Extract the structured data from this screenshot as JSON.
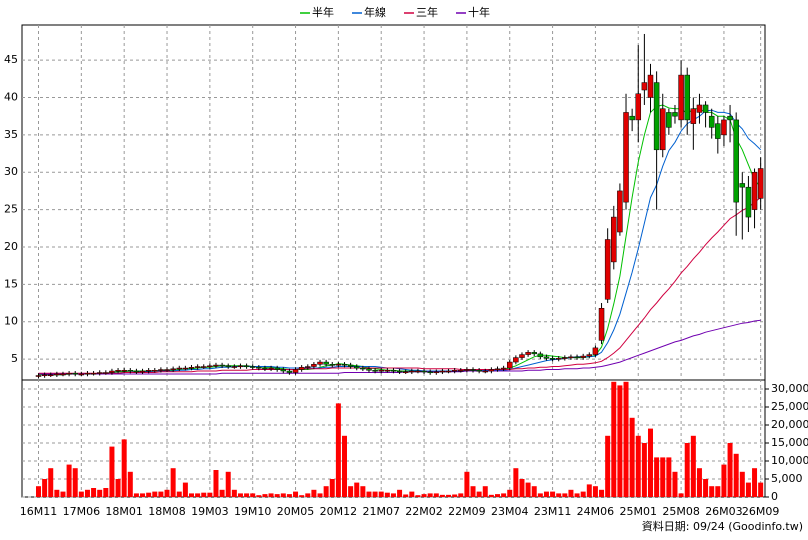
{
  "chart_data": {
    "type": "candlestick",
    "source": "資料日期: 09/24  (Goodinfo.tw)",
    "categories": [
      "16M11",
      null,
      null,
      null,
      null,
      null,
      null,
      "17M06",
      null,
      null,
      null,
      null,
      null,
      null,
      "18M01",
      null,
      null,
      null,
      null,
      null,
      null,
      "18M08",
      null,
      null,
      null,
      null,
      null,
      null,
      "19M03",
      null,
      null,
      null,
      null,
      null,
      null,
      "19M10",
      null,
      null,
      null,
      null,
      null,
      null,
      "20M05",
      null,
      null,
      null,
      null,
      null,
      null,
      "20M12",
      null,
      null,
      null,
      null,
      null,
      null,
      "21M07",
      null,
      null,
      null,
      null,
      null,
      null,
      "22M02",
      null,
      null,
      null,
      null,
      null,
      null,
      "22M09",
      null,
      null,
      null,
      null,
      null,
      null,
      "23M04",
      null,
      null,
      null,
      null,
      null,
      null,
      "23M11",
      null,
      null,
      null,
      null,
      null,
      null,
      "24M06",
      null,
      null,
      null,
      null,
      null,
      null,
      "25M01",
      null,
      null,
      null,
      null,
      null,
      null,
      "25M08",
      null,
      null,
      null,
      null,
      null,
      null,
      "26M03",
      null,
      null,
      null,
      null,
      null,
      "26M09"
    ],
    "open": [
      2.7,
      2.8,
      2.9,
      2.9,
      3.0,
      3.0,
      3.1,
      3.0,
      3.0,
      3.1,
      3.1,
      3.2,
      3.2,
      3.4,
      3.5,
      3.5,
      3.4,
      3.3,
      3.4,
      3.5,
      3.5,
      3.6,
      3.6,
      3.7,
      3.8,
      3.8,
      3.9,
      4.0,
      4.0,
      4.1,
      4.2,
      4.1,
      4.0,
      4.0,
      4.1,
      4.0,
      3.9,
      3.8,
      3.7,
      3.8,
      3.6,
      3.4,
      3.2,
      3.6,
      3.9,
      4.0,
      4.3,
      4.6,
      4.3,
      4.2,
      4.3,
      4.2,
      4.0,
      3.8,
      3.7,
      3.5,
      3.4,
      3.5,
      3.5,
      3.4,
      3.3,
      3.3,
      3.4,
      3.4,
      3.3,
      3.2,
      3.3,
      3.4,
      3.4,
      3.5,
      3.5,
      3.6,
      3.5,
      3.4,
      3.4,
      3.6,
      3.7,
      3.8,
      4.6,
      5.2,
      5.6,
      5.9,
      5.7,
      5.3,
      5.1,
      5.0,
      5.1,
      5.2,
      5.3,
      5.2,
      5.4,
      5.6,
      7.5,
      13,
      18,
      22,
      26,
      37.5,
      37,
      41,
      40,
      42,
      33,
      38,
      38,
      37,
      43,
      36.5,
      38,
      39,
      37.5,
      36.5,
      35,
      37.5,
      37,
      28.5,
      28,
      25,
      26.5
    ],
    "high": [
      3.1,
      3.2,
      3.2,
      3.3,
      3.3,
      3.4,
      3.4,
      3.3,
      3.4,
      3.4,
      3.5,
      3.5,
      3.7,
      3.8,
      3.8,
      3.8,
      3.7,
      3.7,
      3.8,
      3.8,
      3.9,
      3.9,
      4.0,
      4.1,
      4.1,
      4.2,
      4.3,
      4.3,
      4.4,
      4.5,
      4.5,
      4.4,
      4.3,
      4.4,
      4.4,
      4.3,
      4.2,
      4.1,
      4.1,
      4.1,
      3.9,
      3.7,
      3.9,
      4.2,
      4.3,
      4.6,
      4.9,
      4.9,
      4.6,
      4.6,
      4.6,
      4.5,
      4.3,
      4.1,
      4.0,
      3.8,
      3.8,
      3.8,
      3.8,
      3.7,
      3.6,
      3.7,
      3.7,
      3.7,
      3.6,
      3.6,
      3.7,
      3.7,
      3.8,
      3.8,
      3.9,
      3.9,
      3.8,
      3.7,
      3.9,
      4.0,
      4.1,
      4.9,
      5.5,
      5.9,
      6.2,
      6.2,
      6.0,
      5.6,
      5.4,
      5.4,
      5.5,
      5.6,
      5.6,
      5.7,
      5.9,
      6.8,
      12.5,
      22.5,
      25.5,
      28.5,
      40.5,
      38.5,
      47,
      48.5,
      44.5,
      43.5,
      40.5,
      38.5,
      39,
      45,
      44,
      40,
      40.5,
      39.5,
      38.5,
      37.5,
      37.5,
      39,
      38,
      30,
      29.5,
      30.5,
      32
    ],
    "low": [
      2.4,
      2.5,
      2.6,
      2.6,
      2.7,
      2.7,
      2.7,
      2.7,
      2.7,
      2.8,
      2.8,
      2.9,
      2.9,
      3.1,
      3.2,
      3.1,
      3.0,
      3.0,
      3.1,
      3.2,
      3.2,
      3.3,
      3.3,
      3.4,
      3.5,
      3.5,
      3.6,
      3.7,
      3.7,
      3.8,
      3.8,
      3.7,
      3.7,
      3.7,
      3.7,
      3.6,
      3.5,
      3.4,
      3.4,
      3.3,
      3.1,
      2.9,
      2.9,
      3.3,
      3.6,
      3.7,
      4.0,
      4.0,
      3.9,
      3.9,
      3.9,
      3.7,
      3.5,
      3.4,
      3.2,
      3.1,
      3.1,
      3.2,
      3.1,
      3.0,
      3.0,
      3.0,
      3.1,
      3.0,
      2.9,
      2.9,
      3.0,
      3.1,
      3.1,
      3.2,
      3.2,
      3.2,
      3.1,
      3.1,
      3.1,
      3.3,
      3.4,
      3.5,
      4.3,
      4.9,
      5.3,
      5.4,
      5.0,
      4.8,
      4.7,
      4.7,
      4.8,
      4.9,
      4.9,
      4.9,
      5.1,
      5.3,
      7,
      12.5,
      17,
      21.5,
      25,
      35.5,
      34,
      39,
      38,
      25,
      32,
      35,
      36.5,
      36,
      35,
      33,
      36.5,
      36,
      34.5,
      32.5,
      33.5,
      34,
      21.5,
      21,
      22,
      22.5,
      25
    ],
    "close": [
      2.8,
      2.9,
      2.9,
      3.0,
      3.0,
      3.1,
      3.0,
      3.0,
      3.1,
      3.1,
      3.2,
      3.2,
      3.4,
      3.5,
      3.5,
      3.4,
      3.3,
      3.4,
      3.5,
      3.5,
      3.6,
      3.6,
      3.7,
      3.8,
      3.8,
      3.9,
      4.0,
      4.0,
      4.1,
      4.2,
      4.1,
      4.0,
      4.0,
      4.1,
      4.0,
      3.9,
      3.8,
      3.7,
      3.8,
      3.6,
      3.4,
      3.2,
      3.6,
      3.9,
      4.0,
      4.3,
      4.6,
      4.3,
      4.2,
      4.3,
      4.2,
      4.0,
      3.8,
      3.7,
      3.5,
      3.4,
      3.5,
      3.5,
      3.4,
      3.3,
      3.3,
      3.4,
      3.4,
      3.3,
      3.2,
      3.3,
      3.4,
      3.4,
      3.5,
      3.5,
      3.6,
      3.5,
      3.4,
      3.4,
      3.6,
      3.7,
      3.8,
      4.6,
      5.2,
      5.6,
      5.9,
      5.7,
      5.3,
      5.1,
      5.0,
      5.1,
      5.2,
      5.3,
      5.2,
      5.4,
      5.6,
      6.5,
      11.8,
      21,
      24,
      27.5,
      38,
      37,
      40.5,
      42,
      43,
      33,
      38.5,
      36,
      37.5,
      43,
      37,
      38.5,
      39,
      38,
      36,
      34.5,
      37,
      37,
      26,
      28,
      24,
      30,
      30.5
    ],
    "volume": [
      3000,
      5000,
      8000,
      2000,
      1500,
      9000,
      8000,
      1500,
      2000,
      2500,
      2000,
      2500,
      14000,
      5000,
      16000,
      7000,
      1000,
      1000,
      1200,
      1500,
      1500,
      2000,
      8000,
      1500,
      4000,
      1000,
      1000,
      1200,
      1200,
      7500,
      2000,
      7000,
      2000,
      1000,
      1000,
      1000,
      500,
      800,
      1000,
      800,
      1000,
      800,
      1500,
      500,
      1000,
      2000,
      1000,
      3000,
      5000,
      26000,
      17000,
      3000,
      4000,
      3000,
      1500,
      1500,
      1500,
      1200,
      1000,
      2000,
      700,
      1500,
      500,
      800,
      1000,
      1000,
      600,
      600,
      700,
      1000,
      7000,
      3000,
      1500,
      3000,
      600,
      800,
      1000,
      2000,
      8000,
      5000,
      4000,
      3000,
      1000,
      1500,
      1500,
      1000,
      1000,
      2000,
      1000,
      1500,
      3500,
      3000,
      2000,
      17000,
      32000,
      31000,
      32000,
      22000,
      17000,
      15000,
      19000,
      11000,
      11000,
      11000,
      7000,
      1000,
      15000,
      17000,
      8000,
      5000,
      3000,
      3000,
      9000,
      15000,
      12000,
      7000,
      4000,
      8000,
      4000
    ],
    "up_color": "#e00000",
    "down_color": "#00a000",
    "volume_color": "#ff0000",
    "series": [
      {
        "name": "半年",
        "color": "#00c000",
        "values": [
          2.9,
          2.9,
          2.9,
          2.9,
          2.9,
          3.0,
          3.0,
          3.0,
          3.0,
          3.0,
          3.1,
          3.1,
          3.2,
          3.3,
          3.3,
          3.4,
          3.4,
          3.4,
          3.4,
          3.4,
          3.5,
          3.5,
          3.5,
          3.6,
          3.7,
          3.7,
          3.8,
          3.9,
          3.9,
          4.0,
          4.1,
          4.1,
          4.1,
          4.1,
          4.1,
          4.0,
          4.0,
          3.9,
          3.9,
          3.8,
          3.7,
          3.6,
          3.6,
          3.6,
          3.6,
          3.7,
          3.9,
          4.1,
          4.2,
          4.4,
          4.3,
          4.2,
          4.1,
          4.0,
          3.8,
          3.7,
          3.6,
          3.5,
          3.5,
          3.4,
          3.4,
          3.4,
          3.4,
          3.4,
          3.3,
          3.3,
          3.3,
          3.3,
          3.4,
          3.4,
          3.5,
          3.5,
          3.5,
          3.5,
          3.5,
          3.6,
          3.6,
          3.8,
          4.1,
          4.5,
          4.9,
          5.3,
          5.5,
          5.5,
          5.4,
          5.3,
          5.2,
          5.2,
          5.2,
          5.2,
          5.3,
          5.5,
          6.6,
          9.1,
          12.4,
          16.1,
          21.4,
          26.6,
          31.4,
          35,
          38,
          38.8,
          39,
          38.6,
          38.5,
          38.5,
          37.8,
          38.5,
          38.5,
          38,
          38,
          37.5,
          37.5,
          37,
          34.5,
          33,
          31,
          29,
          28
        ]
      },
      {
        "name": "年線",
        "color": "#0060d0",
        "values": [
          3.0,
          3.0,
          3.0,
          3.0,
          3.0,
          3.0,
          3.0,
          3.0,
          3.0,
          3.0,
          3.0,
          3.0,
          3.1,
          3.1,
          3.2,
          3.2,
          3.3,
          3.3,
          3.3,
          3.4,
          3.4,
          3.4,
          3.4,
          3.5,
          3.5,
          3.6,
          3.6,
          3.7,
          3.7,
          3.8,
          3.9,
          3.9,
          4.0,
          4.0,
          4.0,
          4.0,
          4.0,
          4.0,
          4.0,
          3.9,
          3.9,
          3.8,
          3.8,
          3.8,
          3.8,
          3.8,
          3.8,
          3.9,
          3.9,
          4.0,
          4.0,
          4.0,
          4.0,
          4.0,
          4.0,
          4.0,
          3.9,
          3.8,
          3.8,
          3.7,
          3.6,
          3.5,
          3.5,
          3.4,
          3.4,
          3.4,
          3.4,
          3.4,
          3.4,
          3.4,
          3.4,
          3.4,
          3.5,
          3.5,
          3.5,
          3.5,
          3.5,
          3.6,
          3.8,
          4.0,
          4.2,
          4.4,
          4.6,
          4.8,
          4.9,
          5.0,
          5.1,
          5.2,
          5.3,
          5.3,
          5.3,
          5.4,
          5.9,
          7.2,
          8.9,
          11,
          13.8,
          16.6,
          19.8,
          23.2,
          26.6,
          28.3,
          30.8,
          32.9,
          34,
          35.5,
          36.5,
          37,
          37.5,
          38.2,
          38.3,
          38,
          38,
          37.8,
          36.6,
          35.8,
          34.5,
          33.8,
          33
        ]
      },
      {
        "name": "三年",
        "color": "#d00040",
        "values": [
          3.1,
          3.1,
          3.1,
          3.1,
          3.1,
          3.1,
          3.1,
          3.1,
          3.1,
          3.1,
          3.1,
          3.1,
          3.1,
          3.1,
          3.2,
          3.2,
          3.2,
          3.2,
          3.2,
          3.2,
          3.3,
          3.3,
          3.3,
          3.3,
          3.3,
          3.3,
          3.4,
          3.4,
          3.4,
          3.4,
          3.5,
          3.5,
          3.5,
          3.5,
          3.5,
          3.6,
          3.6,
          3.6,
          3.6,
          3.6,
          3.6,
          3.6,
          3.6,
          3.7,
          3.7,
          3.7,
          3.7,
          3.7,
          3.8,
          3.8,
          3.8,
          3.8,
          3.8,
          3.8,
          3.8,
          3.8,
          3.8,
          3.8,
          3.8,
          3.8,
          3.8,
          3.8,
          3.8,
          3.7,
          3.7,
          3.7,
          3.7,
          3.7,
          3.7,
          3.6,
          3.6,
          3.6,
          3.6,
          3.6,
          3.6,
          3.6,
          3.6,
          3.6,
          3.7,
          3.7,
          3.8,
          3.8,
          3.9,
          3.9,
          4.0,
          4.0,
          4.1,
          4.2,
          4.3,
          4.3,
          4.4,
          4.5,
          4.7,
          5.2,
          5.8,
          6.5,
          7.5,
          8.5,
          9.5,
          10.5,
          11.6,
          12.5,
          13.5,
          14.4,
          15.4,
          16.5,
          17.4,
          18.4,
          19.3,
          20.3,
          21.2,
          22,
          22.9,
          23.8,
          24.3,
          24.9,
          25.3,
          26,
          26.6
        ]
      },
      {
        "name": "十年",
        "color": "#7000b0",
        "values": [
          3.0,
          3.0,
          3.0,
          3.0,
          3.0,
          3.0,
          3.0,
          3.0,
          3.0,
          3.0,
          3.0,
          3.0,
          3.0,
          3.0,
          3.0,
          3.0,
          3.0,
          3.0,
          3.0,
          3.0,
          3.0,
          3.0,
          3.0,
          3.0,
          3.0,
          3.0,
          3.0,
          3.0,
          3.0,
          3.0,
          3.1,
          3.1,
          3.1,
          3.1,
          3.1,
          3.1,
          3.1,
          3.1,
          3.1,
          3.1,
          3.1,
          3.1,
          3.1,
          3.1,
          3.1,
          3.1,
          3.1,
          3.1,
          3.1,
          3.1,
          3.2,
          3.2,
          3.2,
          3.2,
          3.2,
          3.2,
          3.2,
          3.2,
          3.2,
          3.2,
          3.3,
          3.3,
          3.3,
          3.3,
          3.3,
          3.3,
          3.3,
          3.3,
          3.3,
          3.3,
          3.4,
          3.4,
          3.4,
          3.4,
          3.4,
          3.4,
          3.4,
          3.4,
          3.4,
          3.4,
          3.5,
          3.5,
          3.5,
          3.6,
          3.6,
          3.6,
          3.7,
          3.7,
          3.7,
          3.8,
          3.8,
          3.9,
          4.0,
          4.2,
          4.4,
          4.6,
          4.9,
          5.2,
          5.5,
          5.8,
          6.1,
          6.4,
          6.7,
          7.0,
          7.3,
          7.5,
          7.8,
          8.1,
          8.3,
          8.6,
          8.8,
          9.0,
          9.2,
          9.4,
          9.6,
          9.8,
          9.9,
          10.1,
          10.2
        ]
      }
    ],
    "ylim": [
      2.2,
      49.7
    ],
    "yticks": [
      5,
      10,
      15,
      20,
      25,
      30,
      35,
      40,
      45
    ],
    "y2lim": [
      0,
      32500
    ],
    "y2ticks": [
      0,
      {
        "value": 5000,
        "label": "5,000"
      },
      {
        "value": 10000,
        "label": "10,000"
      },
      {
        "value": 15000,
        "label": "15,000"
      },
      {
        "value": 20000,
        "label": "20,000"
      },
      {
        "value": 25000,
        "label": "25,000"
      },
      {
        "value": 30000,
        "label": "30,000"
      }
    ],
    "grid": true,
    "legend": "top"
  }
}
